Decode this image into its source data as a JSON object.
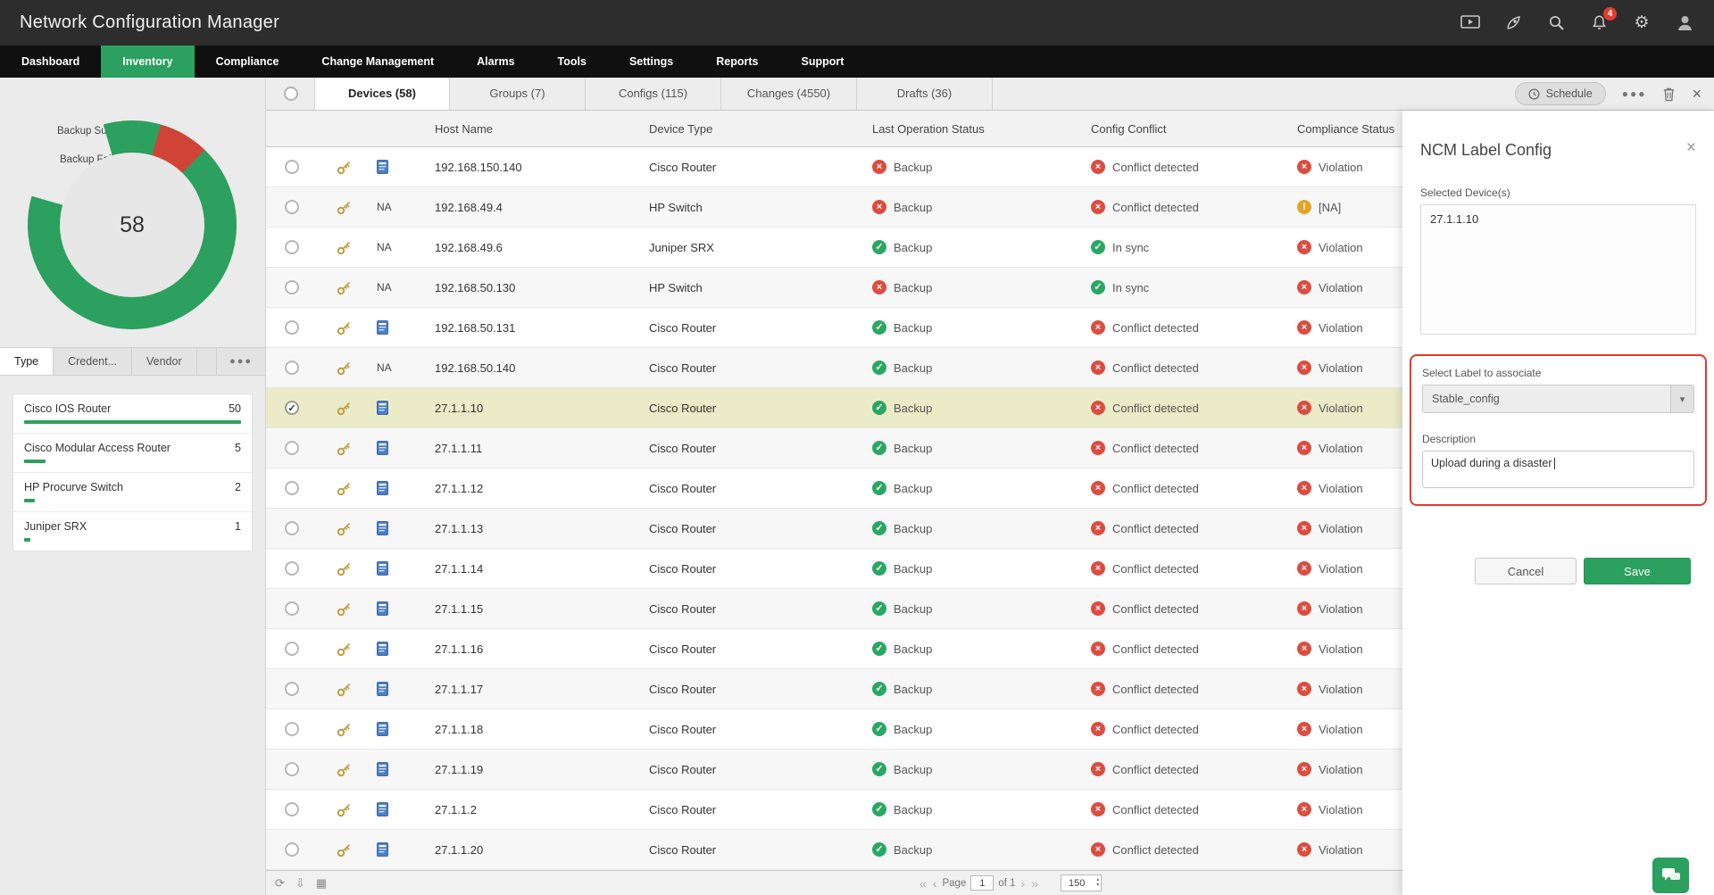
{
  "app": {
    "title": "Network Configuration Manager"
  },
  "topbar": {
    "notification_count": "4"
  },
  "nav": {
    "items": [
      {
        "label": "Dashboard",
        "active": false
      },
      {
        "label": "Inventory",
        "active": true
      },
      {
        "label": "Compliance",
        "active": false
      },
      {
        "label": "Change Management",
        "active": false
      },
      {
        "label": "Alarms",
        "active": false
      },
      {
        "label": "Tools",
        "active": false
      },
      {
        "label": "Settings",
        "active": false
      },
      {
        "label": "Reports",
        "active": false
      },
      {
        "label": "Support",
        "active": false
      }
    ]
  },
  "colors": {
    "accent_green": "#2ba05f",
    "status_red": "#dc4c3f",
    "status_green": "#2aa763",
    "status_yellow": "#e0a624",
    "selected_row": "#ebebc8",
    "donut_failed_red": "#cf4436"
  },
  "sidebar": {
    "donut": {
      "success_label": "Backup Success",
      "failed_label": "Backup Failed",
      "total": "58"
    },
    "tabs": [
      {
        "label": "Type",
        "active": true
      },
      {
        "label": "Credent...",
        "active": false
      },
      {
        "label": "Vendor",
        "active": false
      }
    ],
    "type_list": [
      {
        "name": "Cisco IOS Router",
        "count": "50",
        "pct": 100
      },
      {
        "name": "Cisco Modular Access Router",
        "count": "5",
        "pct": 10
      },
      {
        "name": "HP Procurve Switch",
        "count": "2",
        "pct": 5
      },
      {
        "name": "Juniper SRX",
        "count": "1",
        "pct": 3
      }
    ]
  },
  "content": {
    "tabs": [
      {
        "label": "Devices (58)",
        "active": true
      },
      {
        "label": "Groups (7)",
        "active": false
      },
      {
        "label": "Configs (115)",
        "active": false
      },
      {
        "label": "Changes (4550)",
        "active": false
      },
      {
        "label": "Drafts (36)",
        "active": false
      }
    ],
    "toolbar": {
      "schedule_label": "Schedule"
    },
    "table": {
      "columns": [
        "Host Name",
        "Device Type",
        "Last Operation Status",
        "Config Conflict",
        "Compliance Status"
      ],
      "rows": [
        {
          "host": "192.168.150.140",
          "na": "",
          "type": "Cisco Router",
          "op": {
            "label": "Backup",
            "status": "fail"
          },
          "conflict": {
            "label": "Conflict detected",
            "status": "fail"
          },
          "compliance": {
            "label": "Violation",
            "status": "fail"
          }
        },
        {
          "host": "192.168.49.4",
          "na": "NA",
          "type": "HP Switch",
          "op": {
            "label": "Backup",
            "status": "fail"
          },
          "conflict": {
            "label": "Conflict detected",
            "status": "fail"
          },
          "compliance": {
            "label": "[NA]",
            "status": "warn"
          }
        },
        {
          "host": "192.168.49.6",
          "na": "NA",
          "type": "Juniper SRX",
          "op": {
            "label": "Backup",
            "status": "ok"
          },
          "conflict": {
            "label": "In sync",
            "status": "ok"
          },
          "compliance": {
            "label": "Violation",
            "status": "fail"
          }
        },
        {
          "host": "192.168.50.130",
          "na": "NA",
          "type": "HP Switch",
          "op": {
            "label": "Backup",
            "status": "fail"
          },
          "conflict": {
            "label": "In sync",
            "status": "ok"
          },
          "compliance": {
            "label": "Violation",
            "status": "fail"
          }
        },
        {
          "host": "192.168.50.131",
          "na": "",
          "type": "Cisco Router",
          "op": {
            "label": "Backup",
            "status": "ok"
          },
          "conflict": {
            "label": "Conflict detected",
            "status": "fail"
          },
          "compliance": {
            "label": "Violation",
            "status": "fail"
          }
        },
        {
          "host": "192.168.50.140",
          "na": "NA",
          "type": "Cisco Router",
          "op": {
            "label": "Backup",
            "status": "ok"
          },
          "conflict": {
            "label": "Conflict detected",
            "status": "fail"
          },
          "compliance": {
            "label": "Violation",
            "status": "fail"
          }
        },
        {
          "host": "27.1.1.10",
          "na": "",
          "type": "Cisco Router",
          "selected": true,
          "op": {
            "label": "Backup",
            "status": "ok"
          },
          "conflict": {
            "label": "Conflict detected",
            "status": "fail"
          },
          "compliance": {
            "label": "Violation",
            "status": "fail"
          }
        },
        {
          "host": "27.1.1.11",
          "na": "",
          "type": "Cisco Router",
          "op": {
            "label": "Backup",
            "status": "ok"
          },
          "conflict": {
            "label": "Conflict detected",
            "status": "fail"
          },
          "compliance": {
            "label": "Violation",
            "status": "fail"
          }
        },
        {
          "host": "27.1.1.12",
          "na": "",
          "type": "Cisco Router",
          "op": {
            "label": "Backup",
            "status": "ok"
          },
          "conflict": {
            "label": "Conflict detected",
            "status": "fail"
          },
          "compliance": {
            "label": "Violation",
            "status": "fail"
          }
        },
        {
          "host": "27.1.1.13",
          "na": "",
          "type": "Cisco Router",
          "op": {
            "label": "Backup",
            "status": "ok"
          },
          "conflict": {
            "label": "Conflict detected",
            "status": "fail"
          },
          "compliance": {
            "label": "Violation",
            "status": "fail"
          }
        },
        {
          "host": "27.1.1.14",
          "na": "",
          "type": "Cisco Router",
          "op": {
            "label": "Backup",
            "status": "ok"
          },
          "conflict": {
            "label": "Conflict detected",
            "status": "fail"
          },
          "compliance": {
            "label": "Violation",
            "status": "fail"
          }
        },
        {
          "host": "27.1.1.15",
          "na": "",
          "type": "Cisco Router",
          "op": {
            "label": "Backup",
            "status": "ok"
          },
          "conflict": {
            "label": "Conflict detected",
            "status": "fail"
          },
          "compliance": {
            "label": "Violation",
            "status": "fail"
          }
        },
        {
          "host": "27.1.1.16",
          "na": "",
          "type": "Cisco Router",
          "op": {
            "label": "Backup",
            "status": "ok"
          },
          "conflict": {
            "label": "Conflict detected",
            "status": "fail"
          },
          "compliance": {
            "label": "Violation",
            "status": "fail"
          }
        },
        {
          "host": "27.1.1.17",
          "na": "",
          "type": "Cisco Router",
          "op": {
            "label": "Backup",
            "status": "ok"
          },
          "conflict": {
            "label": "Conflict detected",
            "status": "fail"
          },
          "compliance": {
            "label": "Violation",
            "status": "fail"
          }
        },
        {
          "host": "27.1.1.18",
          "na": "",
          "type": "Cisco Router",
          "op": {
            "label": "Backup",
            "status": "ok"
          },
          "conflict": {
            "label": "Conflict detected",
            "status": "fail"
          },
          "compliance": {
            "label": "Violation",
            "status": "fail"
          }
        },
        {
          "host": "27.1.1.19",
          "na": "",
          "type": "Cisco Router",
          "op": {
            "label": "Backup",
            "status": "ok"
          },
          "conflict": {
            "label": "Conflict detected",
            "status": "fail"
          },
          "compliance": {
            "label": "Violation",
            "status": "fail"
          }
        },
        {
          "host": "27.1.1.2",
          "na": "",
          "type": "Cisco Router",
          "op": {
            "label": "Backup",
            "status": "ok"
          },
          "conflict": {
            "label": "Conflict detected",
            "status": "fail"
          },
          "compliance": {
            "label": "Violation",
            "status": "fail"
          }
        },
        {
          "host": "27.1.1.20",
          "na": "",
          "type": "Cisco Router",
          "op": {
            "label": "Backup",
            "status": "ok"
          },
          "conflict": {
            "label": "Conflict detected",
            "status": "fail"
          },
          "compliance": {
            "label": "Violation",
            "status": "fail"
          }
        }
      ]
    },
    "pagination": {
      "page_label": "Page",
      "page": "1",
      "of_label": "of 1",
      "page_size": "150"
    }
  },
  "panel": {
    "title": "NCM Label Config",
    "selected_devices_label": "Selected Device(s)",
    "selected_devices_value": "27.1.1.10",
    "select_label_label": "Select Label to associate",
    "select_label_value": "Stable_config",
    "description_label": "Description",
    "description_value": "Upload during a disaster",
    "cancel_label": "Cancel",
    "save_label": "Save"
  }
}
